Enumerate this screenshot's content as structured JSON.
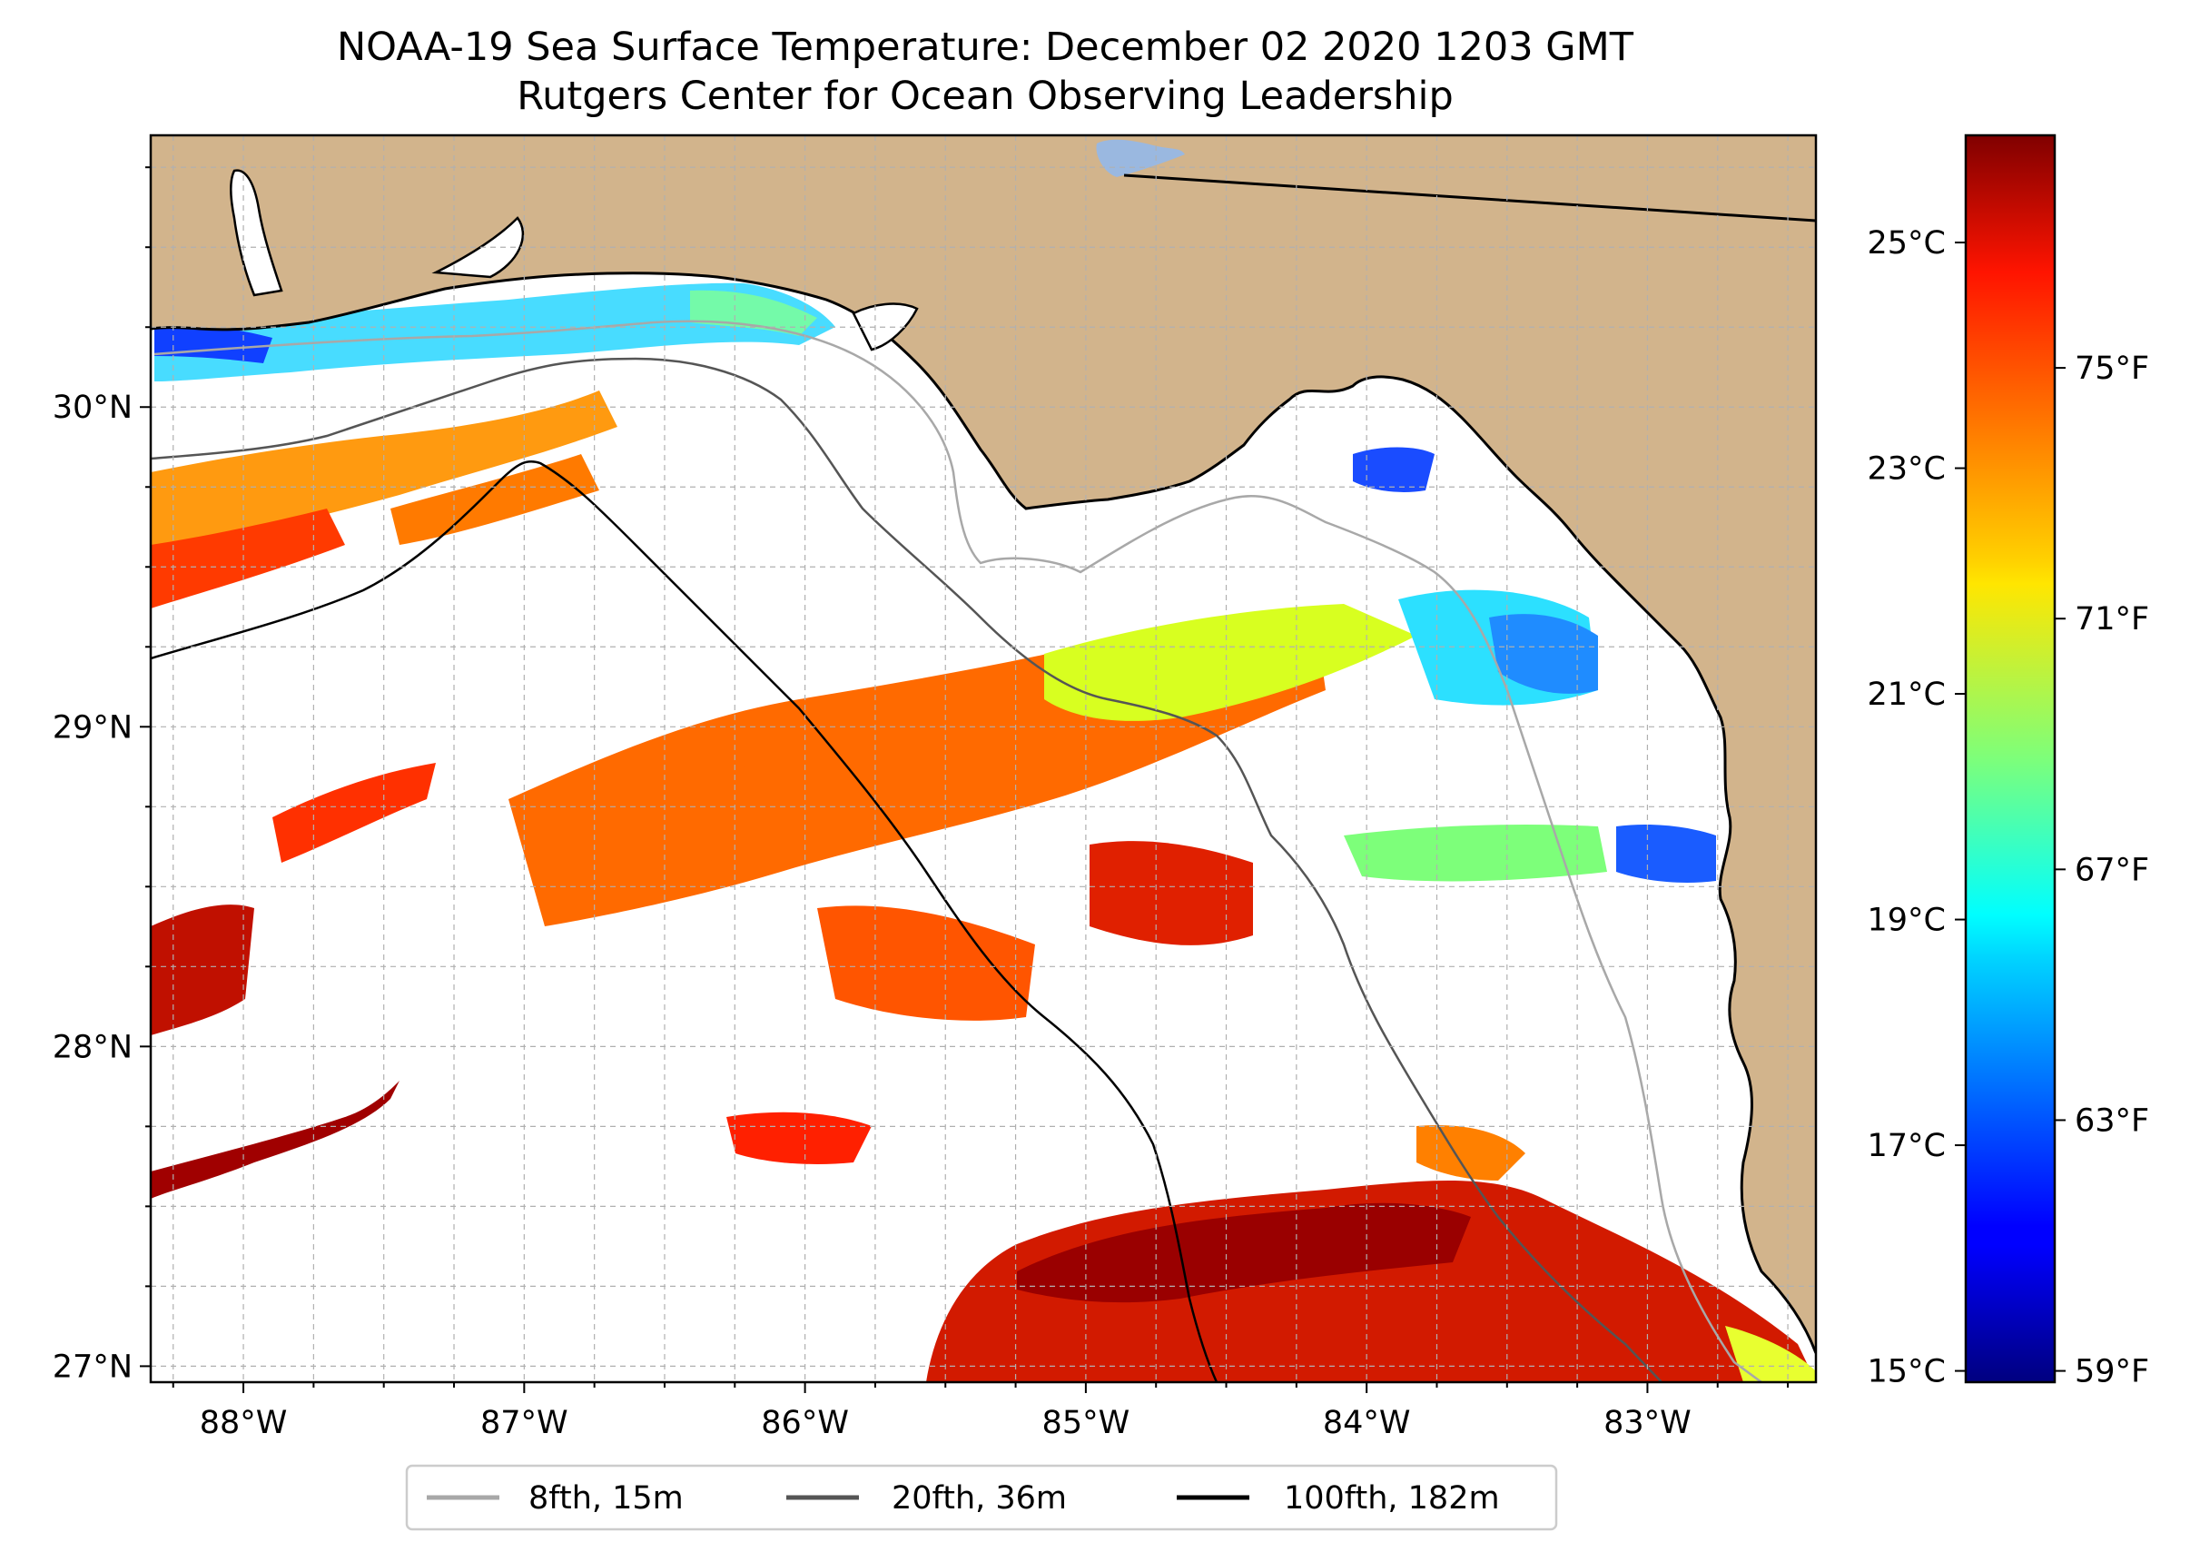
{
  "title": {
    "line1": "NOAA-19 Sea Surface Temperature: December 02 2020 1203 GMT",
    "line2": "Rutgers Center for Ocean Observing Leadership"
  },
  "colors": {
    "land": "#d2b48c",
    "ocean_nodata": "#ffffff",
    "coastline": "#000000",
    "grid": "#b0b0b0",
    "isobath_8fth": "#a8a8a8",
    "isobath_20fth": "#555555",
    "isobath_100fth": "#000000"
  },
  "chart_data": {
    "type": "heatmap",
    "map_extent": {
      "lon": [
        -88.33,
        -82.4
      ],
      "lat": [
        26.95,
        30.85
      ]
    },
    "lat_ticks": [
      {
        "value": 30,
        "label": "30°N"
      },
      {
        "value": 29,
        "label": "29°N"
      },
      {
        "value": 28,
        "label": "28°N"
      },
      {
        "value": 27,
        "label": "27°N"
      }
    ],
    "lon_ticks": [
      {
        "value": -88,
        "label": "88°W"
      },
      {
        "value": -87,
        "label": "87°W"
      },
      {
        "value": -86,
        "label": "86°W"
      },
      {
        "value": -85,
        "label": "85°W"
      },
      {
        "value": -84,
        "label": "84°W"
      },
      {
        "value": -83,
        "label": "83°W"
      }
    ],
    "colorbar": {
      "celsius_range": [
        14.9,
        25.95
      ],
      "celsius_ticks": [
        {
          "value": 25,
          "label": "25°C"
        },
        {
          "value": 23,
          "label": "23°C"
        },
        {
          "value": 21,
          "label": "21°C"
        },
        {
          "value": 19,
          "label": "19°C"
        },
        {
          "value": 17,
          "label": "17°C"
        },
        {
          "value": 15,
          "label": "15°C"
        }
      ],
      "fahrenheit_ticks": [
        {
          "value": 75,
          "label": "75°F"
        },
        {
          "value": 71,
          "label": "71°F"
        },
        {
          "value": 67,
          "label": "67°F"
        },
        {
          "value": 63,
          "label": "63°F"
        },
        {
          "value": 59,
          "label": "59°F"
        }
      ],
      "colormap": "jet"
    },
    "legend": {
      "placement": "bottom-center",
      "entries": [
        {
          "label": "8fth, 15m",
          "color": "#a8a8a8"
        },
        {
          "label": "20fth, 36m",
          "color": "#555555"
        },
        {
          "label": "100fth, 182m",
          "color": "#000000"
        }
      ]
    }
  }
}
